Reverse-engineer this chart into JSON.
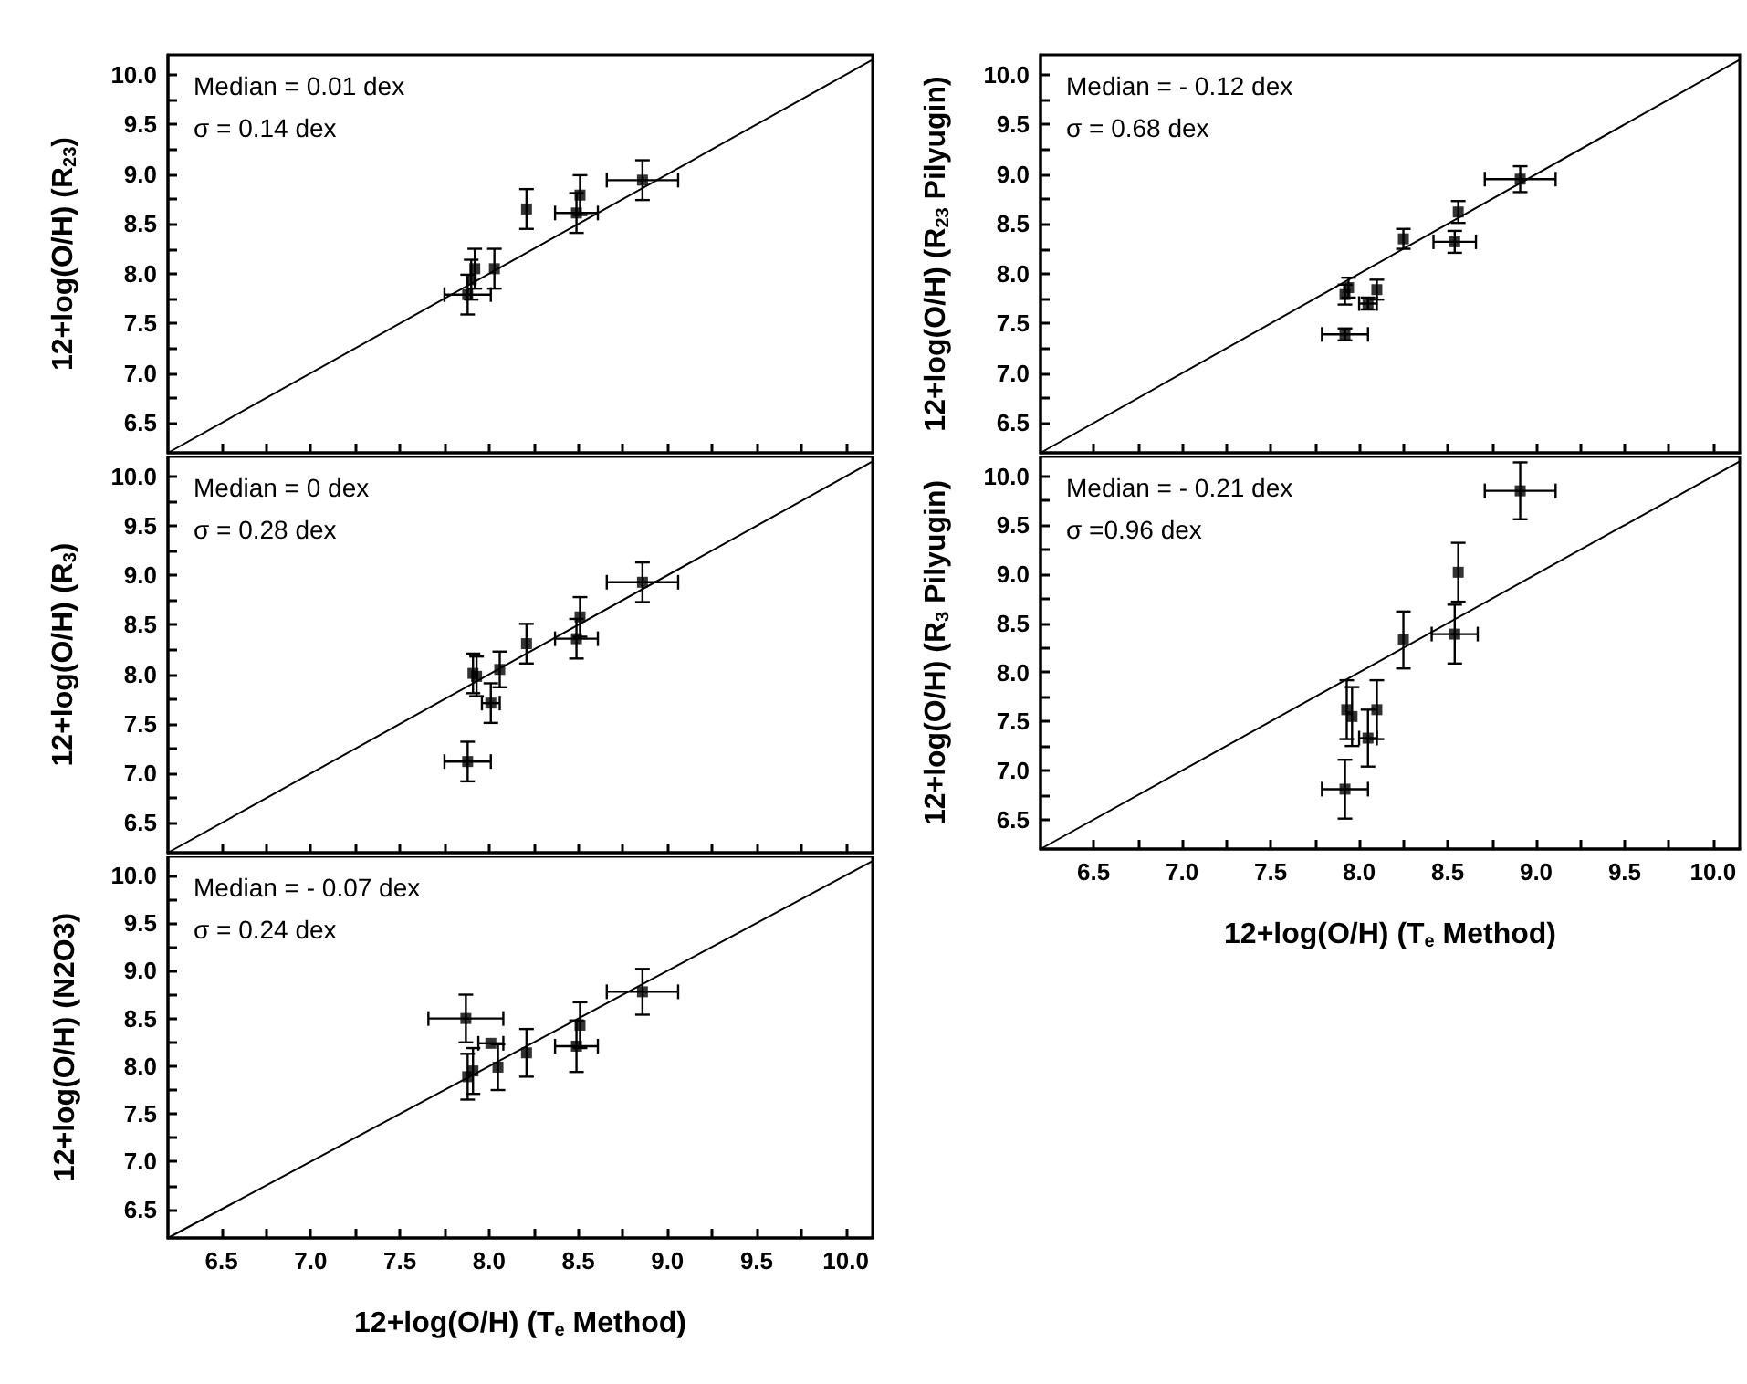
{
  "chart_data": [
    {
      "type": "scatter",
      "ylabel": "12+log(O/H) (R$_{23}$)",
      "annotations": [
        "Median = 0.01 dex",
        "σ = 0.14 dex"
      ],
      "xlim": [
        6.2,
        10.15
      ],
      "ylim": [
        6.2,
        10.2
      ],
      "xticks": [
        {
          "value": 6.5,
          "label": null
        },
        {
          "value": 7,
          "label": null
        },
        {
          "value": 7.5,
          "label": null
        },
        {
          "value": 8,
          "label": null
        },
        {
          "value": 8.5,
          "label": null
        },
        {
          "value": 9,
          "label": null
        },
        {
          "value": 9.5,
          "label": null
        },
        {
          "value": 10,
          "label": null
        }
      ],
      "yticks": [
        {
          "value": 6.5,
          "label": "6.5"
        },
        {
          "value": 7,
          "label": "7.0"
        },
        {
          "value": 7.5,
          "label": "7.5"
        },
        {
          "value": 8,
          "label": "8.0"
        },
        {
          "value": 8.5,
          "label": "8.5"
        },
        {
          "value": 9,
          "label": "9.0"
        },
        {
          "value": 9.5,
          "label": "9.5"
        },
        {
          "value": 10,
          "label": "10.0"
        }
      ],
      "tick_labels": "y",
      "grid": false,
      "series": [
        {
          "marker": "square",
          "color": "#000000",
          "x": [
            8.86,
            8.51,
            8.49,
            8.21,
            8.03,
            7.92,
            7.9,
            7.88
          ],
          "values": [
            8.94,
            8.79,
            8.61,
            8.65,
            8.05,
            8.05,
            7.94,
            7.79
          ],
          "errors": [
            0.2,
            0.2,
            0.2,
            0.2,
            0.2,
            0.2,
            0.2,
            0.2
          ],
          "xerrors": [
            0.2,
            null,
            0.12,
            null,
            null,
            null,
            null,
            0.13
          ]
        },
        {
          "type": "line",
          "marker": "none",
          "color": "#000000",
          "x": [
            6.2,
            10.15
          ],
          "values": [
            6.2,
            10.15
          ]
        }
      ]
    },
    {
      "type": "scatter",
      "ylabel": "12+log(O/H) (R$_{3}$)",
      "annotations": [
        "Median = 0 dex",
        "σ = 0.28 dex"
      ],
      "xlim": [
        6.2,
        10.15
      ],
      "ylim": [
        6.2,
        10.2
      ],
      "xticks": [
        {
          "value": 6.5,
          "label": null
        },
        {
          "value": 7,
          "label": null
        },
        {
          "value": 7.5,
          "label": null
        },
        {
          "value": 8,
          "label": null
        },
        {
          "value": 8.5,
          "label": null
        },
        {
          "value": 9,
          "label": null
        },
        {
          "value": 9.5,
          "label": null
        },
        {
          "value": 10,
          "label": null
        }
      ],
      "yticks": [
        {
          "value": 6.5,
          "label": "6.5"
        },
        {
          "value": 7,
          "label": "7.0"
        },
        {
          "value": 7.5,
          "label": "7.5"
        },
        {
          "value": 8,
          "label": "8.0"
        },
        {
          "value": 8.5,
          "label": "8.5"
        },
        {
          "value": 9,
          "label": "9.0"
        },
        {
          "value": 9.5,
          "label": "9.5"
        },
        {
          "value": 10,
          "label": "10.0"
        }
      ],
      "tick_labels": "y",
      "grid": false,
      "series": [
        {
          "marker": "square",
          "color": "#000000",
          "x": [
            8.86,
            8.51,
            8.49,
            8.21,
            8.06,
            7.91,
            7.93,
            8.01,
            7.88
          ],
          "values": [
            8.93,
            8.58,
            8.36,
            8.31,
            8.05,
            8.01,
            7.98,
            7.71,
            7.12
          ],
          "errors": [
            0.2,
            0.2,
            0.2,
            0.2,
            0.18,
            0.2,
            0.2,
            0.2,
            0.2
          ],
          "xerrors": [
            0.2,
            null,
            0.12,
            null,
            null,
            null,
            null,
            0.05,
            0.13
          ]
        },
        {
          "type": "line",
          "marker": "none",
          "color": "#000000",
          "x": [
            6.2,
            10.15
          ],
          "values": [
            6.2,
            10.15
          ]
        }
      ]
    },
    {
      "type": "scatter",
      "xlabel": "12+log(O/H) (T$_{e}$ Method)",
      "ylabel": "12+log(O/H) (N2O3)",
      "annotations": [
        "Median = - 0.07 dex",
        "σ = 0.24 dex"
      ],
      "xlim": [
        6.2,
        10.15
      ],
      "ylim": [
        6.2,
        10.2
      ],
      "xticks": [
        {
          "value": 6.5,
          "label": "6.5"
        },
        {
          "value": 7,
          "label": "7.0"
        },
        {
          "value": 7.5,
          "label": "7.5"
        },
        {
          "value": 8,
          "label": "8.0"
        },
        {
          "value": 8.5,
          "label": "8.5"
        },
        {
          "value": 9,
          "label": "9.0"
        },
        {
          "value": 9.5,
          "label": "9.5"
        },
        {
          "value": 10,
          "label": "10.0"
        }
      ],
      "yticks": [
        {
          "value": 6.5,
          "label": "6.5"
        },
        {
          "value": 7,
          "label": "7.0"
        },
        {
          "value": 7.5,
          "label": "7.5"
        },
        {
          "value": 8,
          "label": "8.0"
        },
        {
          "value": 8.5,
          "label": "8.5"
        },
        {
          "value": 9,
          "label": "9.0"
        },
        {
          "value": 9.5,
          "label": "9.5"
        },
        {
          "value": 10,
          "label": "10.0"
        }
      ],
      "grid": false,
      "series": [
        {
          "marker": "square",
          "color": "#000000",
          "x": [
            8.86,
            8.51,
            8.49,
            8.21,
            8.05,
            8.01,
            7.87,
            7.91,
            7.88
          ],
          "values": [
            8.78,
            8.43,
            8.21,
            8.14,
            7.99,
            8.24,
            8.5,
            7.95,
            7.89
          ],
          "errors": [
            0.24,
            0.24,
            0.27,
            0.25,
            0.24,
            null,
            0.25,
            0.24,
            0.24
          ],
          "xerrors": [
            0.2,
            null,
            0.12,
            null,
            null,
            0.07,
            0.21,
            null,
            null
          ]
        },
        {
          "type": "line",
          "marker": "none",
          "color": "#000000",
          "x": [
            6.2,
            10.15
          ],
          "values": [
            6.2,
            10.15
          ]
        }
      ]
    },
    {
      "type": "scatter",
      "ylabel": "12+log(O/H) (R$_{23}$ Pilyugin)",
      "annotations": [
        "Median = - 0.12 dex",
        "σ = 0.68 dex"
      ],
      "xlim": [
        6.2,
        10.15
      ],
      "ylim": [
        6.2,
        10.2
      ],
      "xticks": [
        {
          "value": 6.5,
          "label": null
        },
        {
          "value": 7,
          "label": null
        },
        {
          "value": 7.5,
          "label": null
        },
        {
          "value": 8,
          "label": null
        },
        {
          "value": 8.5,
          "label": null
        },
        {
          "value": 9,
          "label": null
        },
        {
          "value": 9.5,
          "label": null
        },
        {
          "value": 10,
          "label": null
        }
      ],
      "yticks": [
        {
          "value": 6.5,
          "label": "6.5"
        },
        {
          "value": 7,
          "label": "7.0"
        },
        {
          "value": 7.5,
          "label": "7.5"
        },
        {
          "value": 8,
          "label": "8.0"
        },
        {
          "value": 8.5,
          "label": "8.5"
        },
        {
          "value": 9,
          "label": "9.0"
        },
        {
          "value": 9.5,
          "label": "9.5"
        },
        {
          "value": 10,
          "label": "10.0"
        }
      ],
      "tick_labels": "y",
      "grid": false,
      "series": [
        {
          "marker": "square",
          "color": "#000000",
          "x": [
            8.91,
            8.56,
            8.54,
            8.25,
            8.1,
            8.05,
            7.94,
            7.92,
            7.92
          ],
          "values": [
            8.95,
            8.62,
            8.32,
            8.35,
            7.84,
            7.7,
            7.86,
            7.79,
            7.39
          ],
          "errors": [
            0.13,
            0.11,
            0.11,
            0.1,
            0.1,
            0.06,
            0.1,
            0.1,
            0.06
          ],
          "xerrors": [
            0.2,
            null,
            0.12,
            null,
            null,
            0.05,
            null,
            null,
            0.13
          ]
        },
        {
          "type": "line",
          "marker": "none",
          "color": "#000000",
          "x": [
            6.2,
            10.15
          ],
          "values": [
            6.2,
            10.15
          ]
        }
      ]
    },
    {
      "type": "scatter",
      "xlabel": "12+log(O/H) (T$_{e}$ Method)",
      "ylabel": "12+log(O/H) (R$_{3}$ Pilyugin)",
      "annotations": [
        "Median = - 0.21 dex",
        "σ =0.96 dex"
      ],
      "xlim": [
        6.2,
        10.15
      ],
      "ylim": [
        6.2,
        10.2
      ],
      "xticks": [
        {
          "value": 6.5,
          "label": "6.5"
        },
        {
          "value": 7,
          "label": "7.0"
        },
        {
          "value": 7.5,
          "label": "7.5"
        },
        {
          "value": 8,
          "label": "8.0"
        },
        {
          "value": 8.5,
          "label": "8.5"
        },
        {
          "value": 9,
          "label": "9.0"
        },
        {
          "value": 9.5,
          "label": "9.5"
        },
        {
          "value": 10,
          "label": "10.0"
        }
      ],
      "yticks": [
        {
          "value": 6.5,
          "label": "6.5"
        },
        {
          "value": 7,
          "label": "7.0"
        },
        {
          "value": 7.5,
          "label": "7.5"
        },
        {
          "value": 8,
          "label": "8.0"
        },
        {
          "value": 8.5,
          "label": "8.5"
        },
        {
          "value": 9,
          "label": "9.0"
        },
        {
          "value": 9.5,
          "label": "9.5"
        },
        {
          "value": 10,
          "label": "10.0"
        }
      ],
      "grid": false,
      "series": [
        {
          "marker": "square",
          "color": "#000000",
          "x": [
            8.91,
            8.56,
            8.54,
            8.25,
            8.1,
            8.05,
            7.93,
            7.96,
            7.92
          ],
          "values": [
            9.85,
            9.02,
            8.39,
            8.33,
            7.62,
            7.33,
            7.62,
            7.55,
            6.81
          ],
          "errors": [
            0.29,
            0.3,
            0.3,
            0.29,
            0.3,
            0.29,
            0.3,
            0.3,
            0.3
          ],
          "xerrors": [
            0.2,
            null,
            0.13,
            null,
            null,
            0.05,
            null,
            null,
            0.13
          ]
        },
        {
          "type": "line",
          "marker": "none",
          "color": "#000000",
          "x": [
            6.2,
            10.15
          ],
          "values": [
            6.2,
            10.15
          ]
        }
      ]
    }
  ]
}
